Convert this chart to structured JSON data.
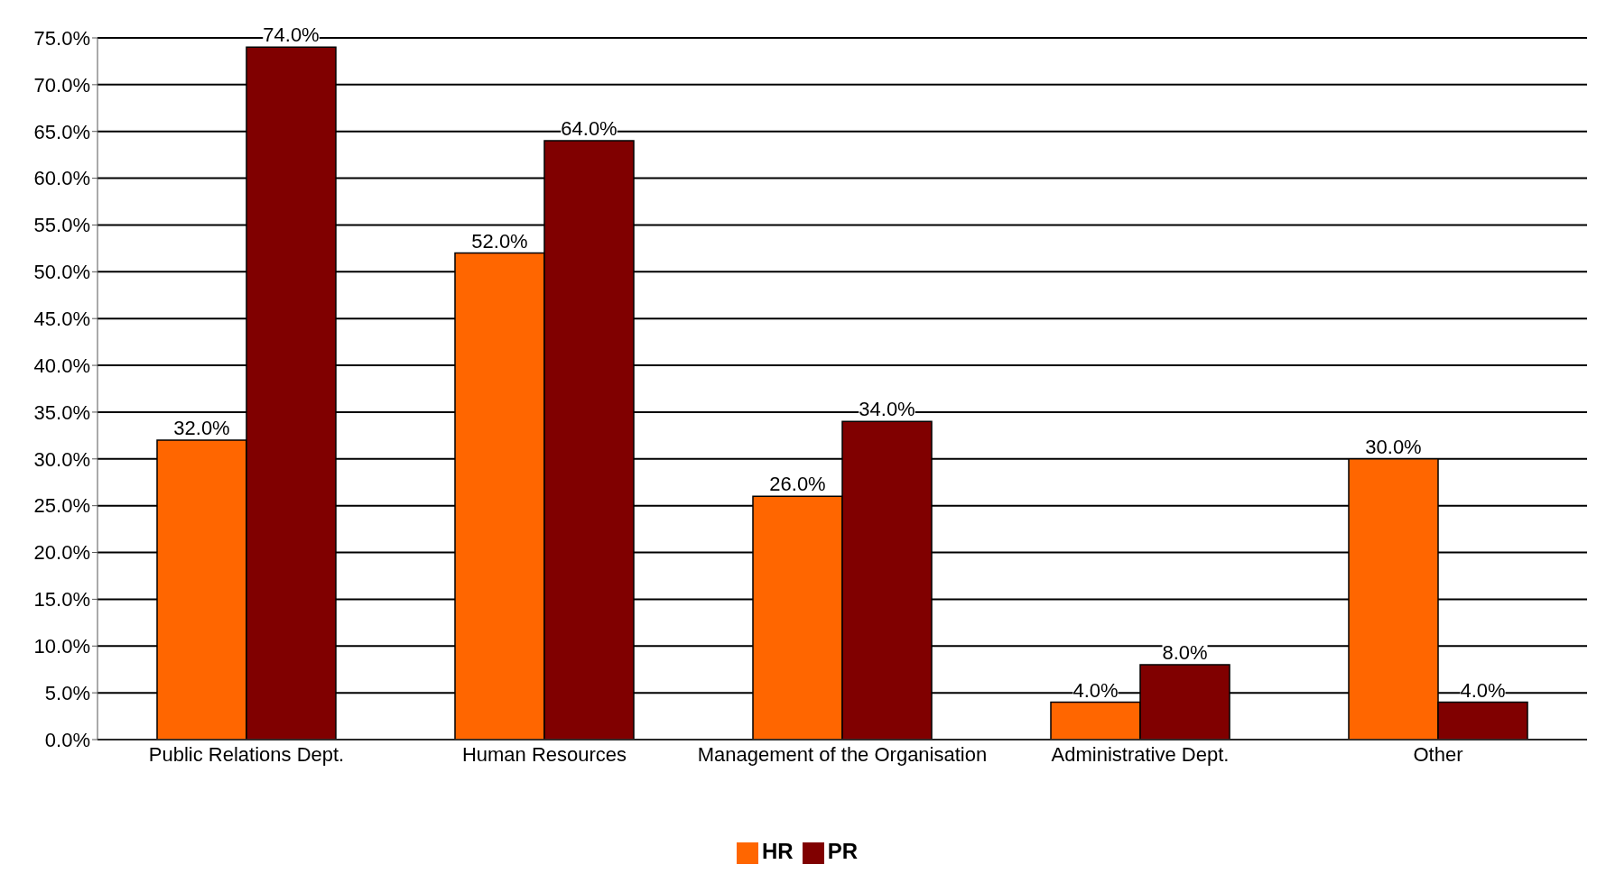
{
  "chart_data": {
    "type": "bar",
    "categories": [
      "Public Relations Dept.",
      "Human Resources",
      "Management of the Organisation",
      "Administrative Dept.",
      "Other"
    ],
    "series": [
      {
        "name": "HR",
        "color": "#ff6600",
        "values": [
          32,
          52,
          26,
          4,
          30
        ],
        "value_labels": [
          "32.0%",
          "52.0%",
          "26.0%",
          "4.0%",
          "30.0%"
        ]
      },
      {
        "name": "PR",
        "color": "#800000",
        "values": [
          74,
          64,
          34,
          8,
          4
        ],
        "value_labels": [
          "74.0%",
          "64.0%",
          "34.0%",
          "8.0%",
          "4.0%"
        ]
      }
    ],
    "ylim": [
      0,
      75
    ],
    "yticks": [
      {
        "value": 0,
        "label": "0.0%"
      },
      {
        "value": 5,
        "label": "5.0%"
      },
      {
        "value": 10,
        "label": "10.0%"
      },
      {
        "value": 15,
        "label": "15.0%"
      },
      {
        "value": 20,
        "label": "20.0%"
      },
      {
        "value": 25,
        "label": "25.0%"
      },
      {
        "value": 30,
        "label": "30.0%"
      },
      {
        "value": 35,
        "label": "35.0%"
      },
      {
        "value": 40,
        "label": "40.0%"
      },
      {
        "value": 45,
        "label": "45.0%"
      },
      {
        "value": 50,
        "label": "50.0%"
      },
      {
        "value": 55,
        "label": "55.0%"
      },
      {
        "value": 60,
        "label": "60.0%"
      },
      {
        "value": 65,
        "label": "65.0%"
      },
      {
        "value": 70,
        "label": "70.0%"
      },
      {
        "value": 75,
        "label": "75.0%"
      }
    ],
    "grid": "y",
    "legend": "bottom"
  }
}
